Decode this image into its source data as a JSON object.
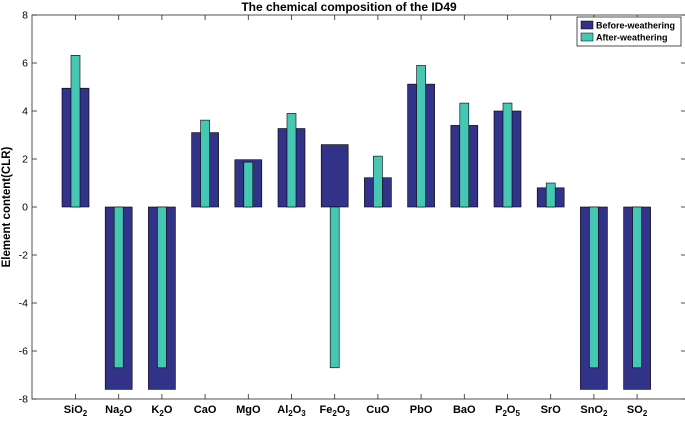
{
  "chart_data": {
    "type": "bar",
    "title": "The chemical composition of the ID49",
    "xlabel": "",
    "ylabel": "Element content(CLR)",
    "ylim": [
      -8,
      8
    ],
    "yticks": [
      -8,
      -6,
      -4,
      -2,
      0,
      2,
      4,
      6,
      8
    ],
    "grid": false,
    "legend_position": "top-right",
    "categories": [
      {
        "base": "SiO",
        "sub": "2"
      },
      {
        "base": "Na",
        "sub": "2",
        "tail": "O"
      },
      {
        "base": "K",
        "sub": "2",
        "tail": "O"
      },
      {
        "base": "CaO"
      },
      {
        "base": "MgO"
      },
      {
        "base": "Al",
        "sub": "2",
        "tail": "O",
        "sub2": "3"
      },
      {
        "base": "Fe",
        "sub": "2",
        "tail": "O",
        "sub2": "3"
      },
      {
        "base": "CuO"
      },
      {
        "base": "PbO"
      },
      {
        "base": "BaO"
      },
      {
        "base": "P",
        "sub": "2",
        "tail": "O",
        "sub2": "5"
      },
      {
        "base": "SrO"
      },
      {
        "base": "SnO",
        "sub": "2"
      },
      {
        "base": "SO",
        "sub": "2"
      }
    ],
    "series": [
      {
        "name": "Before-weathering",
        "color": "#323288",
        "values": [
          4.95,
          -7.6,
          -7.6,
          3.1,
          1.97,
          3.27,
          2.6,
          1.22,
          5.12,
          3.4,
          4.0,
          0.8,
          -7.6,
          -7.6
        ]
      },
      {
        "name": "After-weathering",
        "color": "#46c7b4",
        "values": [
          6.32,
          -6.7,
          -6.7,
          3.62,
          1.87,
          3.9,
          -6.7,
          2.12,
          5.9,
          4.33,
          4.33,
          1.0,
          -6.7,
          -6.7
        ]
      }
    ]
  }
}
